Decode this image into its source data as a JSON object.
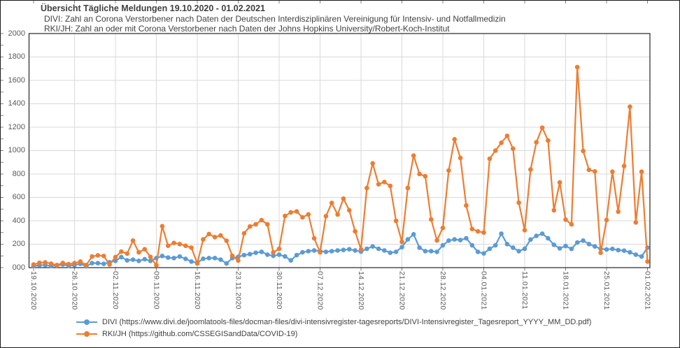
{
  "header": {
    "title": "Übersicht Tägliche Meldungen 19.10.2020 - 01.02.2021",
    "subtitle_divi": "DIVI: Zahl an Corona Verstorbener nach Daten der Deutschen Interdisziplinären Vereinigung für Intensiv- und Notfallmedizin",
    "subtitle_rki": "RKI/JH: Zahl an oder mit Corona Verstorbener nach Daten der Johns Hopkins University/Robert-Koch-Institut"
  },
  "chart_data": {
    "type": "line",
    "title": "Übersicht Tägliche Meldungen 19.10.2020 - 01.02.2021",
    "x_start": "19.10.2020",
    "x_end": "01.02.2021",
    "frequency": "daily",
    "n_points": 106,
    "ylim": [
      0,
      2000
    ],
    "grid": true,
    "legend_position": "bottom-left",
    "y_tick_labels": [
      "000",
      "200",
      "400",
      "600",
      "800",
      "1000",
      "1200",
      "1400",
      "1600",
      "1800",
      "2000"
    ],
    "x_tick_labels": [
      "19.10.2020",
      "26.10.2020",
      "02.11.2020",
      "09.11.2020",
      "16.11.2020",
      "23.11.2020",
      "30.11.2020",
      "07.12.2020",
      "14.12.2020",
      "21.12.2020",
      "28.12.2020",
      "04.01.2021",
      "11.01.2021",
      "18.01.2021",
      "25.01.2021",
      "01.02.2021"
    ],
    "series": [
      {
        "name": "DIVI",
        "color": "#5B9BD5",
        "values": [
          14,
          20,
          22,
          14,
          18,
          26,
          16,
          22,
          32,
          12,
          38,
          38,
          32,
          46,
          58,
          90,
          62,
          68,
          58,
          72,
          58,
          82,
          100,
          86,
          82,
          95,
          75,
          52,
          42,
          76,
          82,
          82,
          68,
          36,
          82,
          92,
          107,
          115,
          127,
          135,
          111,
          101,
          111,
          96,
          62,
          107,
          131,
          141,
          147,
          141,
          135,
          141,
          147,
          151,
          157,
          147,
          137,
          161,
          181,
          161,
          147,
          127,
          135,
          175,
          241,
          285,
          171,
          141,
          141,
          135,
          191,
          231,
          241,
          235,
          251,
          191,
          135,
          121,
          161,
          191,
          290,
          201,
          171,
          141,
          161,
          240,
          271,
          290,
          251,
          195,
          165,
          185,
          160,
          215,
          231,
          201,
          181,
          161,
          155,
          160,
          150,
          145,
          131,
          111,
          95,
          171
        ]
      },
      {
        "name": "RKI/JH",
        "color": "#ED7D31",
        "values": [
          26,
          42,
          45,
          34,
          22,
          40,
          29,
          38,
          52,
          22,
          95,
          105,
          100,
          26,
          90,
          137,
          120,
          231,
          131,
          157,
          92,
          20,
          354,
          187,
          211,
          201,
          187,
          171,
          36,
          241,
          287,
          261,
          275,
          230,
          101,
          61,
          293,
          352,
          370,
          406,
          370,
          130,
          161,
          442,
          472,
          480,
          430,
          455,
          251,
          131,
          440,
          553,
          454,
          589,
          490,
          310,
          155,
          680,
          891,
          712,
          732,
          698,
          400,
          221,
          680,
          957,
          800,
          780,
          412,
          233,
          340,
          830,
          1097,
          937,
          531,
          330,
          310,
          300,
          930,
          1000,
          1067,
          1126,
          1017,
          555,
          320,
          838,
          1071,
          1196,
          1086,
          490,
          728,
          410,
          370,
          1713,
          997,
          835,
          822,
          127,
          407,
          820,
          478,
          868,
          1375,
          386,
          820,
          52
        ]
      }
    ],
    "legend": [
      {
        "label": "DIVI (https://www.divi.de/joomlatools-files/docman-files/divi-intensivregister-tagesreports/DIVI-Intensivregister_Tagesreport_YYYY_MM_DD.pdf)",
        "color": "#5B9BD5"
      },
      {
        "label": "RKI/JH (https://github.com/CSSEGISandData/COVID-19)",
        "color": "#ED7D31"
      }
    ],
    "colors": {
      "grid": "#D9D9D9",
      "axis": "#262626",
      "tick": "#808080",
      "tick_label": "#595959",
      "text": "#3f3f3f"
    }
  }
}
